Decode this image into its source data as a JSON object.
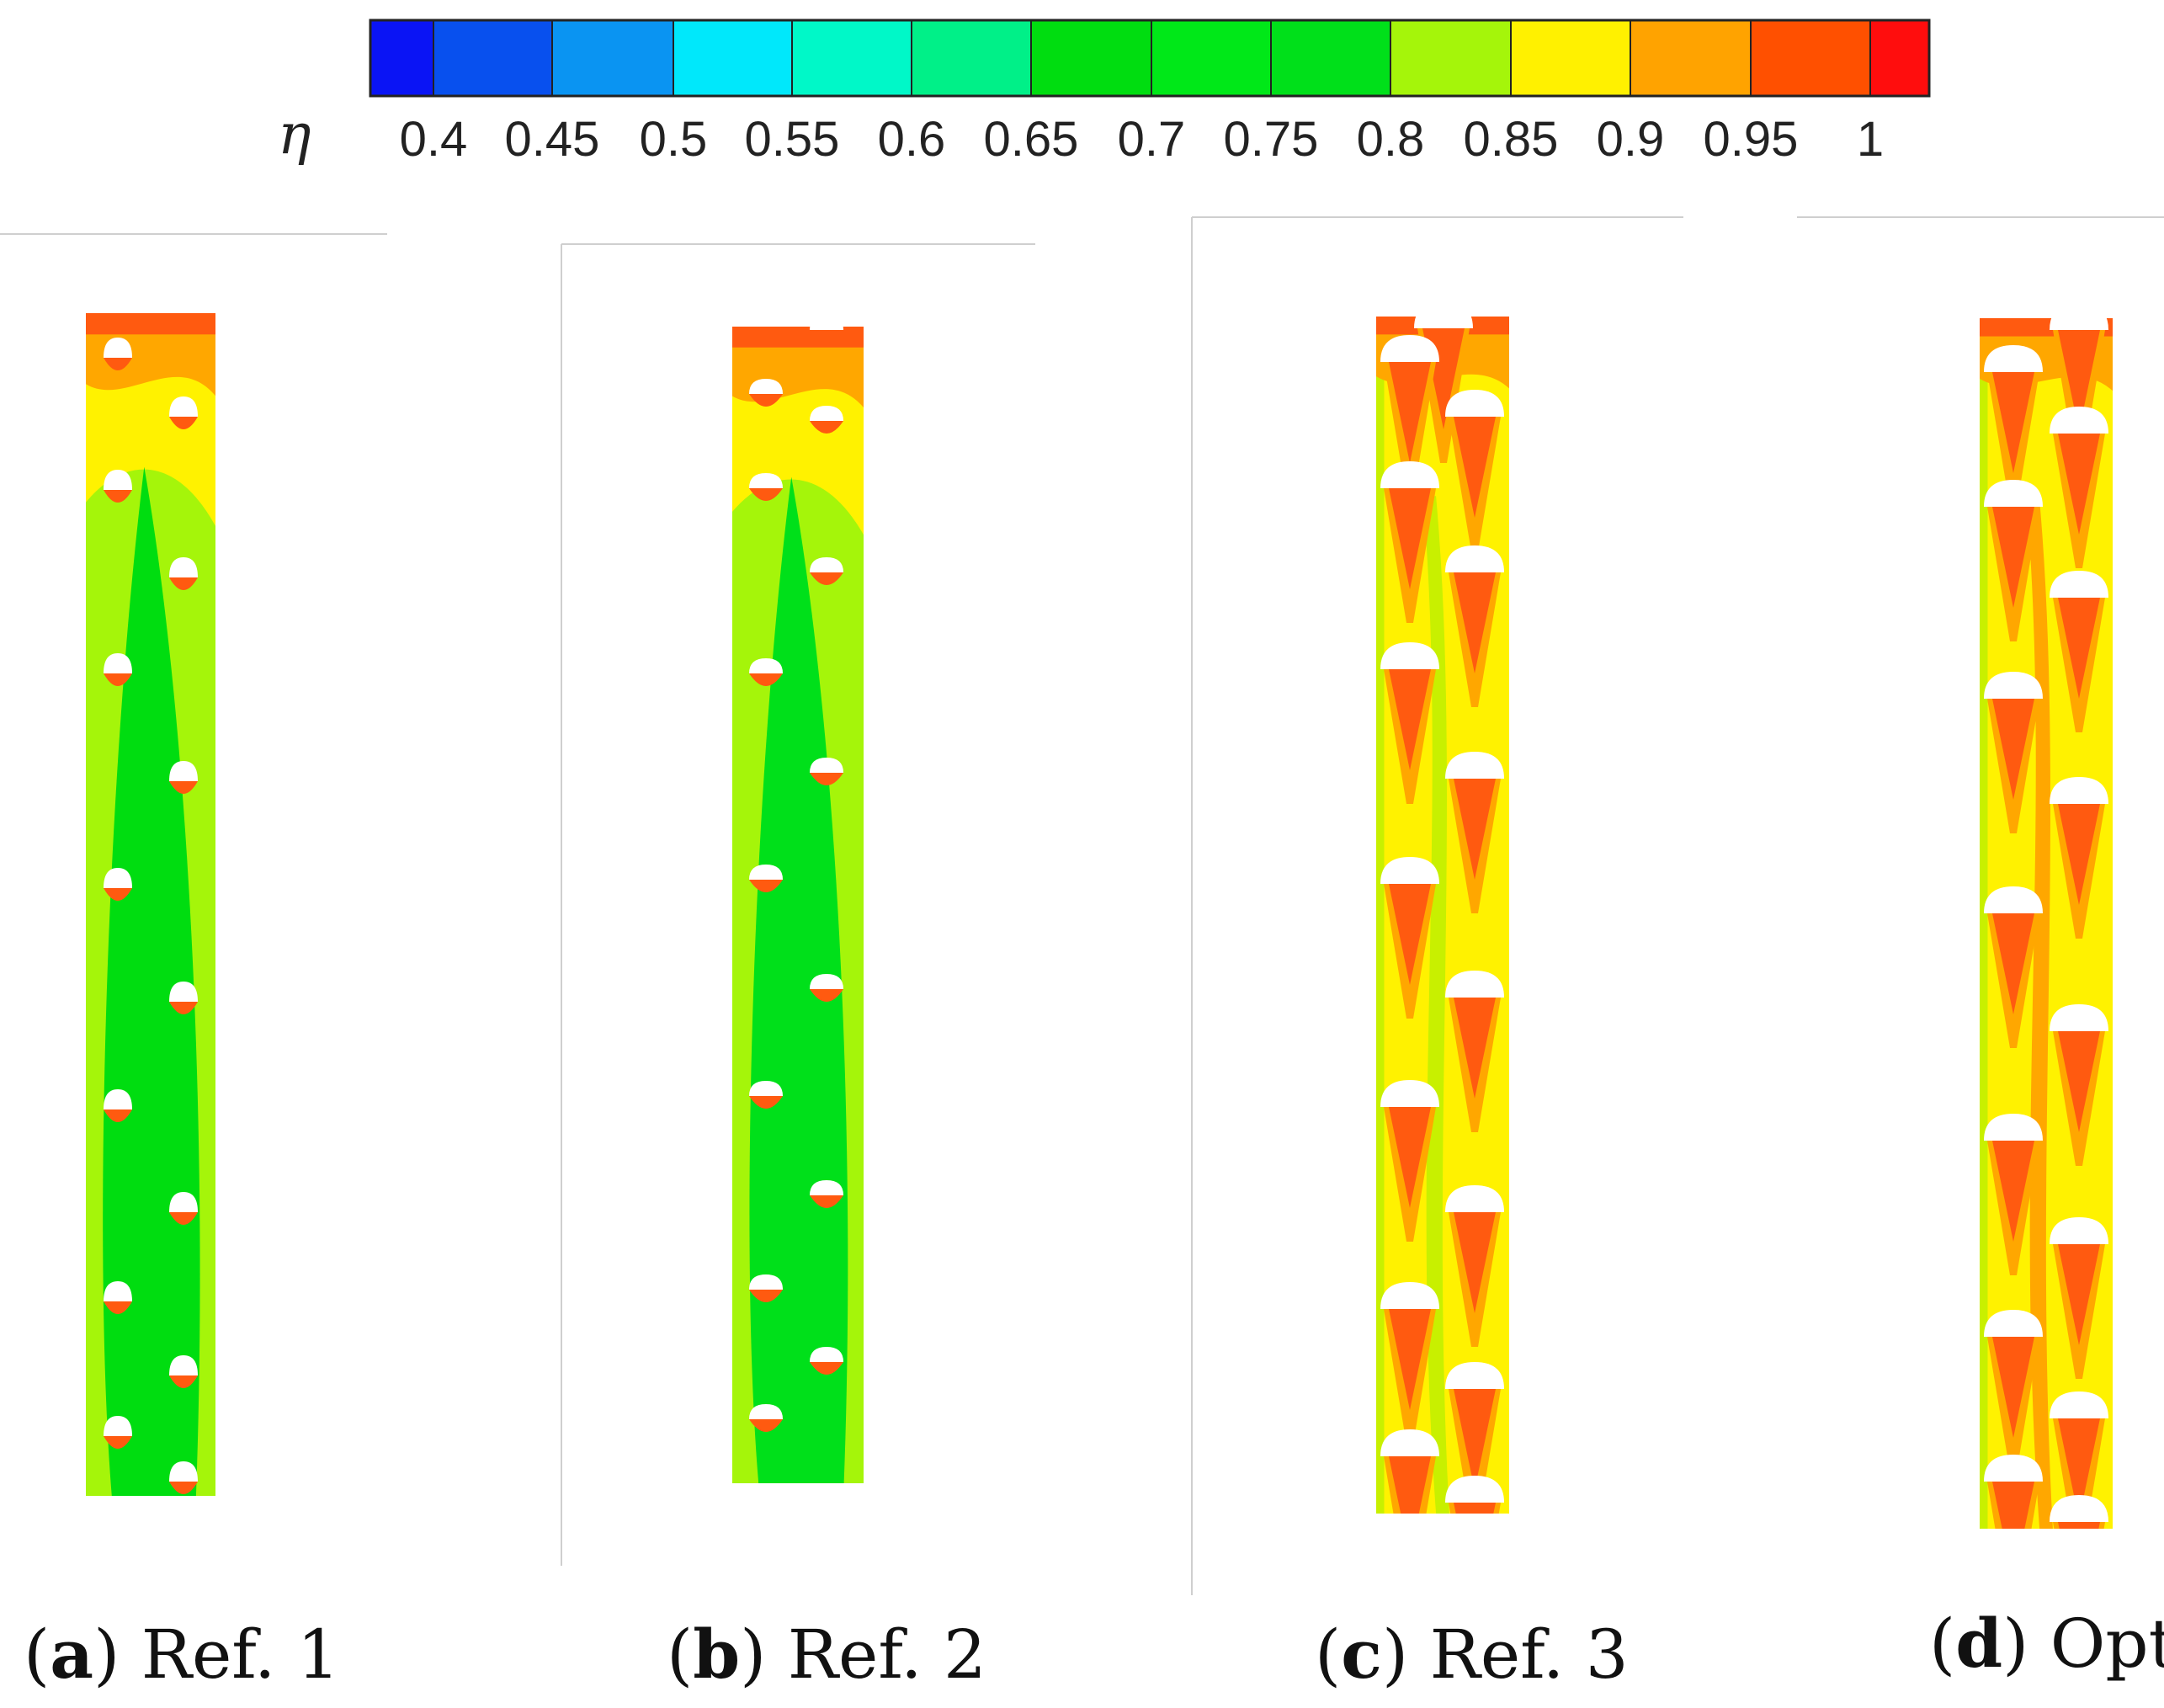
{
  "figure": {
    "colorbar": {
      "symbol": "η",
      "labels": [
        "0.4",
        "0.45",
        "0.5",
        "0.55",
        "0.6",
        "0.65",
        "0.7",
        "0.75",
        "0.8",
        "0.85",
        "0.9",
        "0.95",
        "1"
      ],
      "colors": [
        "#0a14f5",
        "#0850ee",
        "#0a94f2",
        "#00e8fb",
        "#00f8c8",
        "#00f088",
        "#00dd10",
        "#00e818",
        "#00e01a",
        "#a5f50a",
        "#fff100",
        "#ffa300",
        "#ff5000",
        "#ff0d0d"
      ]
    },
    "panels": [
      {
        "letter": "a",
        "name": "Ref. 1",
        "background": "#00dd10",
        "bands": [
          "#ff5a10",
          "#ffa700",
          "#fff200",
          "#a5f50a"
        ]
      },
      {
        "letter": "b",
        "name": "Ref. 2",
        "background": "#00e01a",
        "bands": [
          "#ff5a10",
          "#ffa700",
          "#fff200",
          "#a5f50a"
        ]
      },
      {
        "letter": "c",
        "name": "Ref. 3",
        "background": "#fff200",
        "bands": [
          "#ff5a10",
          "#ffa700",
          "#fff200",
          "#c8f000"
        ]
      },
      {
        "letter": "d",
        "name": "Opt",
        "background": "#fff200",
        "bands": [
          "#ff5a10",
          "#ffa700",
          "#fff200",
          "#c8f000"
        ]
      }
    ]
  }
}
